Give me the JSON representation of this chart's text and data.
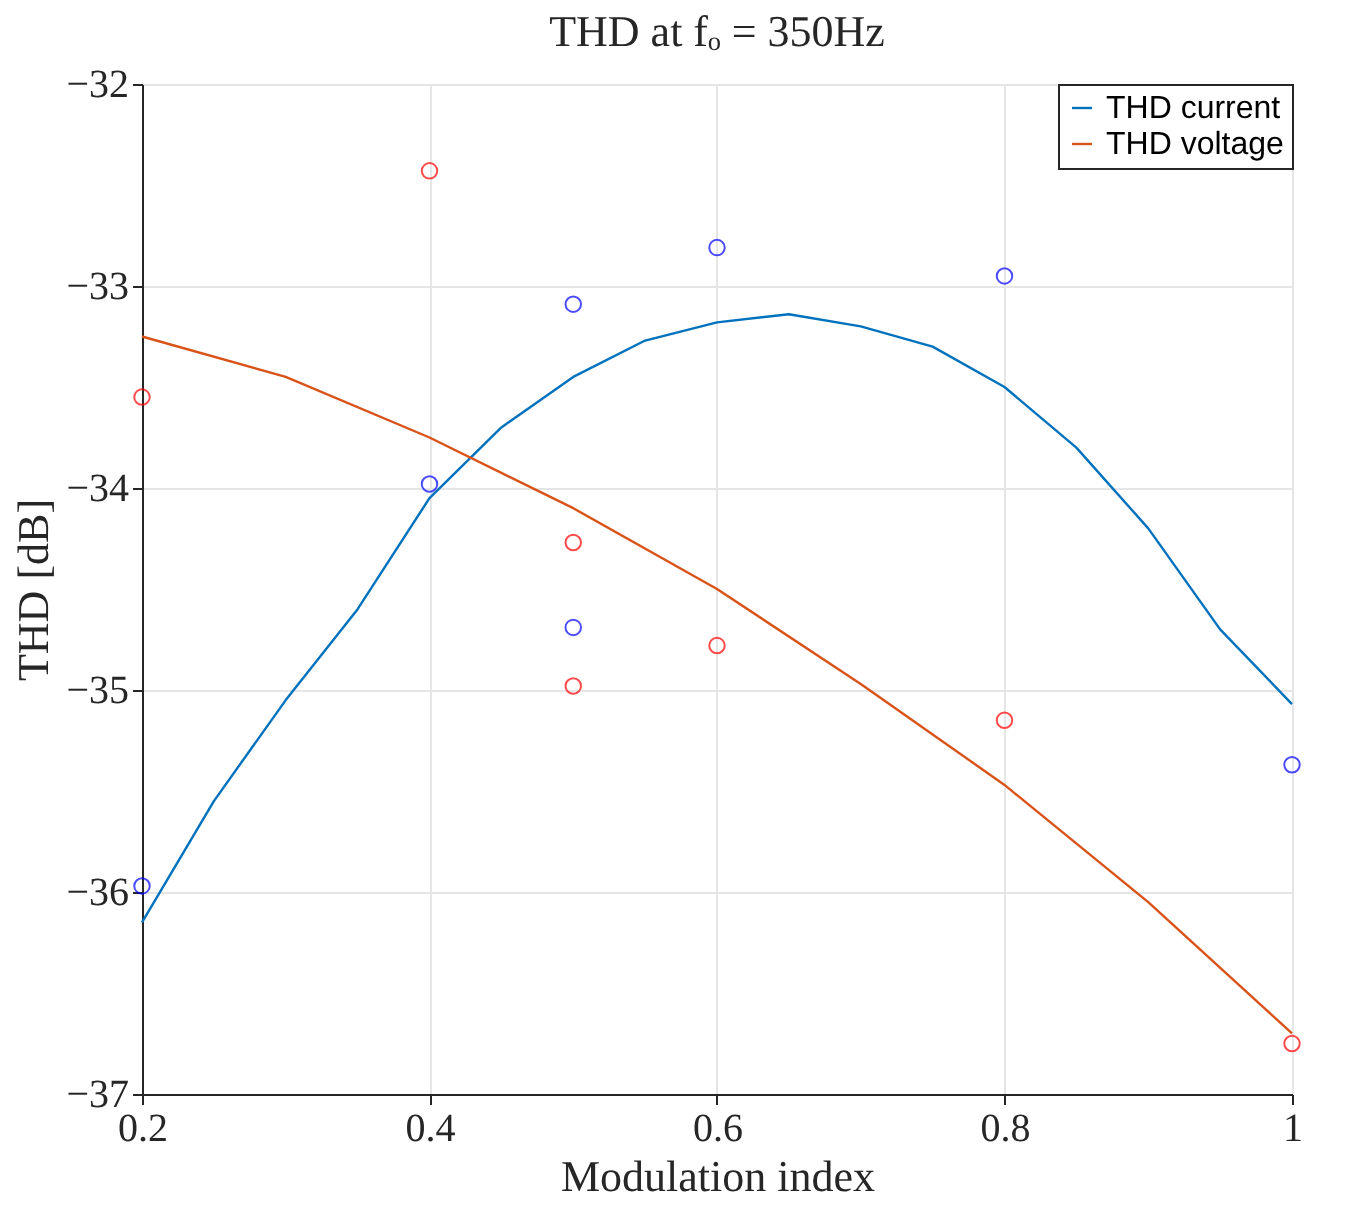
{
  "chart_data": {
    "type": "line",
    "title": "THD at fₒ = 350Hz",
    "xlabel": "Modulation index",
    "ylabel": "THD [dB]",
    "xlim": [
      0.2,
      1
    ],
    "xticks": [
      0.2,
      0.4,
      0.6,
      0.8,
      1
    ],
    "ylim": [
      -37,
      -32
    ],
    "yticks": [
      -37,
      -36,
      -35,
      -34,
      -33,
      -32
    ],
    "grid": true,
    "legend": "top right",
    "series": [
      {
        "name": "THD current",
        "color": "#0072bd",
        "marker": "none",
        "x": [
          0.2,
          0.25,
          0.3,
          0.35,
          0.4,
          0.45,
          0.5,
          0.55,
          0.6,
          0.65,
          0.7,
          0.75,
          0.8,
          0.85,
          0.9,
          0.95,
          1.0
        ],
        "values": [
          -36.15,
          -35.55,
          -35.05,
          -34.6,
          -34.05,
          -33.7,
          -33.45,
          -33.27,
          -33.18,
          -33.14,
          -33.2,
          -33.3,
          -33.5,
          -33.8,
          -34.2,
          -34.7,
          -35.07
        ]
      },
      {
        "name": "THD voltage",
        "color": "#d95319",
        "marker": "none",
        "x": [
          0.2,
          0.3,
          0.4,
          0.5,
          0.6,
          0.7,
          0.8,
          0.9,
          1.0
        ],
        "values": [
          -33.25,
          -33.45,
          -33.75,
          -34.1,
          -34.5,
          -34.97,
          -35.47,
          -36.05,
          -36.7
        ]
      },
      {
        "type": "scatter",
        "color": "#0000ff",
        "marker": "circle",
        "x": [
          0.2,
          0.4,
          0.5,
          0.5,
          0.6,
          0.8,
          1.0
        ],
        "values": [
          -35.97,
          -33.98,
          -33.09,
          -34.69,
          -32.81,
          -32.95,
          -35.37
        ]
      },
      {
        "type": "scatter",
        "color": "#ff0000",
        "marker": "circle",
        "x": [
          0.2,
          0.4,
          0.5,
          0.5,
          0.6,
          0.8,
          1.0
        ],
        "values": [
          -33.55,
          -32.43,
          -34.27,
          -34.98,
          -34.78,
          -35.15,
          -36.75
        ]
      }
    ]
  }
}
